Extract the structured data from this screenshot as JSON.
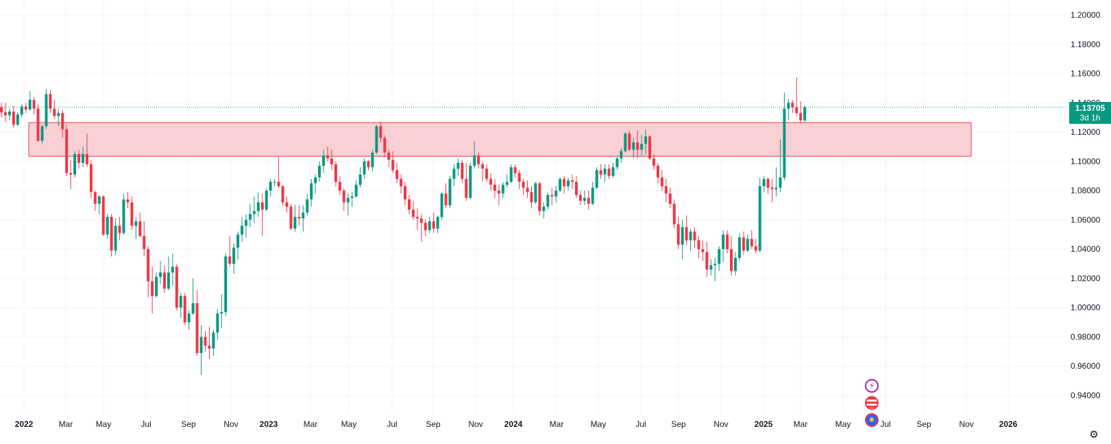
{
  "chart_data": {
    "type": "candlestick",
    "timeframe_badge": "3d 1h",
    "last_price": "1.13705",
    "y_axis": {
      "ticks": [
        "1.20000",
        "1.18000",
        "1.16000",
        "1.14000",
        "1.12000",
        "1.10000",
        "1.08000",
        "1.06000",
        "1.04000",
        "1.02000",
        "1.00000",
        "0.98000",
        "0.96000",
        "0.94000"
      ],
      "range": [
        0.925,
        1.205
      ]
    },
    "x_axis": {
      "ticks": [
        {
          "label": "2022",
          "bold": true
        },
        {
          "label": "Mar",
          "bold": false
        },
        {
          "label": "May",
          "bold": false
        },
        {
          "label": "Jul",
          "bold": false
        },
        {
          "label": "Sep",
          "bold": false
        },
        {
          "label": "Nov",
          "bold": false
        },
        {
          "label": "2023",
          "bold": true
        },
        {
          "label": "Mar",
          "bold": false
        },
        {
          "label": "May",
          "bold": false
        },
        {
          "label": "Jul",
          "bold": false
        },
        {
          "label": "Sep",
          "bold": false
        },
        {
          "label": "Nov",
          "bold": false
        },
        {
          "label": "2024",
          "bold": true
        },
        {
          "label": "Mar",
          "bold": false
        },
        {
          "label": "May",
          "bold": false
        },
        {
          "label": "Jul",
          "bold": false
        },
        {
          "label": "Sep",
          "bold": false
        },
        {
          "label": "Nov",
          "bold": false
        },
        {
          "label": "2025",
          "bold": true
        },
        {
          "label": "Mar",
          "bold": false
        },
        {
          "label": "May",
          "bold": false
        },
        {
          "label": "Jul",
          "bold": false
        },
        {
          "label": "Sep",
          "bold": false
        },
        {
          "label": "Nov",
          "bold": false
        },
        {
          "label": "2026",
          "bold": true
        }
      ]
    },
    "zone": {
      "top": 1.1265,
      "bottom": 1.1035
    },
    "colors": {
      "up": "#089981",
      "down": "#f23645",
      "zone_fill": "#f9d0d4",
      "zone_border": "#f23645",
      "grid": "#f0f3fa",
      "last_line": "#089981"
    },
    "candles": [
      [
        1.137,
        1.14,
        1.13,
        1.1335
      ],
      [
        1.1335,
        1.14,
        1.127,
        1.1315
      ],
      [
        1.1315,
        1.136,
        1.128,
        1.134
      ],
      [
        1.134,
        1.138,
        1.123,
        1.125
      ],
      [
        1.125,
        1.1335,
        1.124,
        1.132
      ],
      [
        1.132,
        1.139,
        1.13,
        1.1375
      ],
      [
        1.1375,
        1.14,
        1.133,
        1.1355
      ],
      [
        1.1355,
        1.148,
        1.1345,
        1.142
      ],
      [
        1.142,
        1.144,
        1.132,
        1.136
      ],
      [
        1.136,
        1.139,
        1.1135,
        1.114
      ],
      [
        1.114,
        1.125,
        1.112,
        1.124
      ],
      [
        1.124,
        1.1495,
        1.122,
        1.146
      ],
      [
        1.146,
        1.149,
        1.133,
        1.136
      ],
      [
        1.136,
        1.142,
        1.129,
        1.131
      ],
      [
        1.131,
        1.136,
        1.124,
        1.133
      ],
      [
        1.133,
        1.135,
        1.116,
        1.122
      ],
      [
        1.122,
        1.125,
        1.09,
        1.092
      ],
      [
        1.092,
        1.101,
        1.081,
        1.091
      ],
      [
        1.091,
        1.107,
        1.089,
        1.105
      ],
      [
        1.105,
        1.108,
        1.095,
        1.099
      ],
      [
        1.099,
        1.11,
        1.096,
        1.105
      ],
      [
        1.105,
        1.119,
        1.096,
        1.098
      ],
      [
        1.098,
        1.101,
        1.075,
        1.079
      ],
      [
        1.079,
        1.08,
        1.066,
        1.071
      ],
      [
        1.071,
        1.077,
        1.064,
        1.076
      ],
      [
        1.076,
        1.077,
        1.049,
        1.05
      ],
      [
        1.05,
        1.064,
        1.047,
        1.062
      ],
      [
        1.062,
        1.064,
        1.035,
        1.039
      ],
      [
        1.039,
        1.061,
        1.036,
        1.056
      ],
      [
        1.056,
        1.062,
        1.046,
        1.051
      ],
      [
        1.051,
        1.078,
        1.05,
        1.074
      ],
      [
        1.074,
        1.079,
        1.068,
        1.072
      ],
      [
        1.072,
        1.076,
        1.053,
        1.056
      ],
      [
        1.056,
        1.062,
        1.047,
        1.059
      ],
      [
        1.059,
        1.065,
        1.048,
        1.049
      ],
      [
        1.049,
        1.059,
        1.035,
        1.04
      ],
      [
        1.04,
        1.042,
        1.007,
        1.018
      ],
      [
        1.018,
        1.028,
        0.996,
        1.008
      ],
      [
        1.008,
        1.024,
        1.007,
        1.021
      ],
      [
        1.021,
        1.032,
        1.016,
        1.024
      ],
      [
        1.024,
        1.029,
        1.01,
        1.013
      ],
      [
        1.013,
        1.035,
        1.012,
        1.024
      ],
      [
        1.024,
        1.037,
        1.015,
        1.028
      ],
      [
        1.028,
        1.03,
        0.998,
        1.0
      ],
      [
        1.0,
        1.01,
        0.993,
        1.008
      ],
      [
        1.008,
        1.01,
        0.988,
        0.99
      ],
      [
        0.99,
        0.998,
        0.985,
        0.996
      ],
      [
        0.996,
        1.02,
        0.995,
        1.003
      ],
      [
        1.003,
        1.012,
        0.967,
        0.969
      ],
      [
        0.969,
        0.988,
        0.954,
        0.98
      ],
      [
        0.98,
        0.984,
        0.97,
        0.974
      ],
      [
        0.974,
        0.987,
        0.965,
        0.972
      ],
      [
        0.972,
        0.985,
        0.967,
        0.983
      ],
      [
        0.983,
        0.999,
        0.978,
        0.996
      ],
      [
        0.996,
        1.009,
        0.986,
        0.997
      ],
      [
        0.997,
        1.037,
        0.994,
        1.035
      ],
      [
        1.035,
        1.049,
        1.028,
        1.03
      ],
      [
        1.03,
        1.044,
        1.023,
        1.041
      ],
      [
        1.041,
        1.052,
        1.033,
        1.05
      ],
      [
        1.05,
        1.062,
        1.045,
        1.056
      ],
      [
        1.056,
        1.064,
        1.048,
        1.06
      ],
      [
        1.06,
        1.071,
        1.055,
        1.064
      ],
      [
        1.064,
        1.076,
        1.058,
        1.066
      ],
      [
        1.066,
        1.079,
        1.062,
        1.072
      ],
      [
        1.072,
        1.078,
        1.049,
        1.067
      ],
      [
        1.067,
        1.082,
        1.066,
        1.08
      ],
      [
        1.08,
        1.088,
        1.076,
        1.086
      ],
      [
        1.086,
        1.088,
        1.083,
        1.086
      ],
      [
        1.086,
        1.103,
        1.082,
        1.083
      ],
      [
        1.083,
        1.084,
        1.07,
        1.072
      ],
      [
        1.072,
        1.076,
        1.065,
        1.069
      ],
      [
        1.069,
        1.071,
        1.053,
        1.054
      ],
      [
        1.054,
        1.07,
        1.052,
        1.062
      ],
      [
        1.062,
        1.07,
        1.056,
        1.061
      ],
      [
        1.061,
        1.07,
        1.052,
        1.065
      ],
      [
        1.065,
        1.078,
        1.063,
        1.074
      ],
      [
        1.074,
        1.088,
        1.069,
        1.085
      ],
      [
        1.085,
        1.091,
        1.078,
        1.089
      ],
      [
        1.089,
        1.1,
        1.086,
        1.097
      ],
      [
        1.097,
        1.108,
        1.092,
        1.104
      ],
      [
        1.104,
        1.11,
        1.1,
        1.102
      ],
      [
        1.102,
        1.108,
        1.094,
        1.098
      ],
      [
        1.098,
        1.1,
        1.083,
        1.086
      ],
      [
        1.086,
        1.09,
        1.077,
        1.08
      ],
      [
        1.08,
        1.082,
        1.066,
        1.072
      ],
      [
        1.072,
        1.078,
        1.063,
        1.075
      ],
      [
        1.075,
        1.079,
        1.069,
        1.076
      ],
      [
        1.076,
        1.087,
        1.075,
        1.084
      ],
      [
        1.084,
        1.096,
        1.082,
        1.091
      ],
      [
        1.091,
        1.102,
        1.088,
        1.1
      ],
      [
        1.1,
        1.101,
        1.094,
        1.096
      ],
      [
        1.096,
        1.108,
        1.093,
        1.106
      ],
      [
        1.106,
        1.125,
        1.105,
        1.124
      ],
      [
        1.124,
        1.127,
        1.113,
        1.116
      ],
      [
        1.116,
        1.118,
        1.103,
        1.106
      ],
      [
        1.106,
        1.108,
        1.096,
        1.101
      ],
      [
        1.101,
        1.107,
        1.092,
        1.094
      ],
      [
        1.094,
        1.099,
        1.085,
        1.088
      ],
      [
        1.088,
        1.091,
        1.078,
        1.083
      ],
      [
        1.083,
        1.086,
        1.07,
        1.074
      ],
      [
        1.074,
        1.077,
        1.064,
        1.067
      ],
      [
        1.067,
        1.073,
        1.06,
        1.062
      ],
      [
        1.062,
        1.068,
        1.053,
        1.061
      ],
      [
        1.061,
        1.064,
        1.045,
        1.058
      ],
      [
        1.058,
        1.06,
        1.049,
        1.053
      ],
      [
        1.053,
        1.062,
        1.051,
        1.059
      ],
      [
        1.059,
        1.065,
        1.051,
        1.054
      ],
      [
        1.054,
        1.063,
        1.051,
        1.062
      ],
      [
        1.062,
        1.079,
        1.06,
        1.078
      ],
      [
        1.078,
        1.085,
        1.068,
        1.07
      ],
      [
        1.07,
        1.09,
        1.068,
        1.088
      ],
      [
        1.088,
        1.098,
        1.083,
        1.095
      ],
      [
        1.095,
        1.102,
        1.09,
        1.099
      ],
      [
        1.099,
        1.101,
        1.085,
        1.088
      ],
      [
        1.088,
        1.099,
        1.073,
        1.075
      ],
      [
        1.075,
        1.099,
        1.074,
        1.097
      ],
      [
        1.097,
        1.114,
        1.095,
        1.104
      ],
      [
        1.104,
        1.106,
        1.095,
        1.098
      ],
      [
        1.098,
        1.1,
        1.086,
        1.095
      ],
      [
        1.095,
        1.098,
        1.086,
        1.088
      ],
      [
        1.088,
        1.092,
        1.08,
        1.084
      ],
      [
        1.084,
        1.088,
        1.075,
        1.08
      ],
      [
        1.08,
        1.084,
        1.07,
        1.078
      ],
      [
        1.078,
        1.086,
        1.075,
        1.084
      ],
      [
        1.084,
        1.091,
        1.082,
        1.086
      ],
      [
        1.086,
        1.098,
        1.085,
        1.096
      ],
      [
        1.096,
        1.098,
        1.089,
        1.092
      ],
      [
        1.092,
        1.094,
        1.081,
        1.086
      ],
      [
        1.086,
        1.088,
        1.077,
        1.082
      ],
      [
        1.082,
        1.087,
        1.075,
        1.079
      ],
      [
        1.079,
        1.083,
        1.068,
        1.072
      ],
      [
        1.072,
        1.086,
        1.071,
        1.085
      ],
      [
        1.085,
        1.086,
        1.063,
        1.066
      ],
      [
        1.066,
        1.072,
        1.061,
        1.069
      ],
      [
        1.069,
        1.079,
        1.067,
        1.077
      ],
      [
        1.077,
        1.082,
        1.07,
        1.076
      ],
      [
        1.076,
        1.083,
        1.072,
        1.08
      ],
      [
        1.08,
        1.089,
        1.079,
        1.088
      ],
      [
        1.088,
        1.09,
        1.078,
        1.083
      ],
      [
        1.083,
        1.089,
        1.08,
        1.087
      ],
      [
        1.087,
        1.091,
        1.081,
        1.086
      ],
      [
        1.086,
        1.09,
        1.075,
        1.077
      ],
      [
        1.077,
        1.08,
        1.07,
        1.073
      ],
      [
        1.073,
        1.08,
        1.07,
        1.075
      ],
      [
        1.075,
        1.08,
        1.067,
        1.071
      ],
      [
        1.071,
        1.086,
        1.07,
        1.082
      ],
      [
        1.082,
        1.096,
        1.081,
        1.094
      ],
      [
        1.094,
        1.098,
        1.088,
        1.091
      ],
      [
        1.091,
        1.098,
        1.086,
        1.095
      ],
      [
        1.095,
        1.098,
        1.088,
        1.09
      ],
      [
        1.09,
        1.099,
        1.089,
        1.096
      ],
      [
        1.096,
        1.104,
        1.094,
        1.102
      ],
      [
        1.102,
        1.109,
        1.099,
        1.107
      ],
      [
        1.107,
        1.12,
        1.106,
        1.119
      ],
      [
        1.119,
        1.121,
        1.107,
        1.108
      ],
      [
        1.108,
        1.116,
        1.102,
        1.113
      ],
      [
        1.113,
        1.121,
        1.102,
        1.108
      ],
      [
        1.108,
        1.118,
        1.104,
        1.112
      ],
      [
        1.112,
        1.122,
        1.105,
        1.117
      ],
      [
        1.117,
        1.118,
        1.101,
        1.102
      ],
      [
        1.102,
        1.105,
        1.094,
        1.097
      ],
      [
        1.097,
        1.099,
        1.085,
        1.089
      ],
      [
        1.089,
        1.094,
        1.08,
        1.083
      ],
      [
        1.083,
        1.088,
        1.072,
        1.078
      ],
      [
        1.078,
        1.082,
        1.068,
        1.071
      ],
      [
        1.071,
        1.074,
        1.054,
        1.057
      ],
      [
        1.057,
        1.062,
        1.04,
        1.043
      ],
      [
        1.043,
        1.06,
        1.033,
        1.055
      ],
      [
        1.055,
        1.063,
        1.043,
        1.046
      ],
      [
        1.046,
        1.054,
        1.039,
        1.052
      ],
      [
        1.052,
        1.055,
        1.041,
        1.046
      ],
      [
        1.046,
        1.049,
        1.034,
        1.04
      ],
      [
        1.04,
        1.046,
        1.032,
        1.038
      ],
      [
        1.038,
        1.045,
        1.021,
        1.026
      ],
      [
        1.026,
        1.033,
        1.022,
        1.029
      ],
      [
        1.029,
        1.034,
        1.018,
        1.03
      ],
      [
        1.03,
        1.042,
        1.025,
        1.04
      ],
      [
        1.04,
        1.053,
        1.031,
        1.05
      ],
      [
        1.05,
        1.053,
        1.037,
        1.04
      ],
      [
        1.04,
        1.049,
        1.022,
        1.025
      ],
      [
        1.025,
        1.038,
        1.022,
        1.034
      ],
      [
        1.034,
        1.051,
        1.032,
        1.048
      ],
      [
        1.048,
        1.052,
        1.036,
        1.039
      ],
      [
        1.039,
        1.05,
        1.038,
        1.047
      ],
      [
        1.047,
        1.053,
        1.04,
        1.042
      ],
      [
        1.042,
        1.047,
        1.037,
        1.039
      ],
      [
        1.039,
        1.089,
        1.038,
        1.083
      ],
      [
        1.083,
        1.09,
        1.079,
        1.088
      ],
      [
        1.088,
        1.089,
        1.078,
        1.082
      ],
      [
        1.082,
        1.088,
        1.072,
        1.081
      ],
      [
        1.081,
        1.096,
        1.076,
        1.082
      ],
      [
        1.082,
        1.115,
        1.079,
        1.089
      ],
      [
        1.089,
        1.147,
        1.087,
        1.136
      ],
      [
        1.136,
        1.143,
        1.128,
        1.14
      ],
      [
        1.14,
        1.142,
        1.133,
        1.137
      ],
      [
        1.137,
        1.1575,
        1.131,
        1.133
      ],
      [
        1.133,
        1.141,
        1.126,
        1.128
      ],
      [
        1.128,
        1.138,
        1.127,
        1.137
      ]
    ]
  },
  "icons": {
    "event_top": "lightning-icon",
    "event_mid": "us-flag-icon",
    "event_bottom": "eu-flag-icon",
    "settings": "gear-icon"
  }
}
